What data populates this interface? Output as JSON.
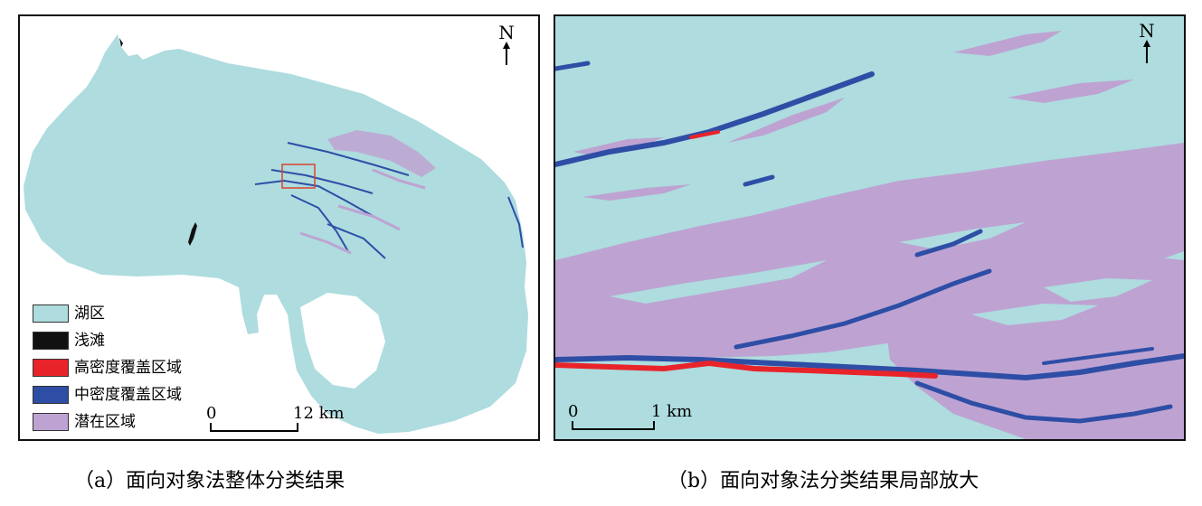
{
  "panel_a": {
    "north_label": "N",
    "legend": [
      {
        "label": "湖区",
        "color": "#aedcdf"
      },
      {
        "label": "浅滩",
        "color": "#111111"
      },
      {
        "label": "高密度覆盖区域",
        "color": "#e8242a"
      },
      {
        "label": "中密度覆盖区域",
        "color": "#2e4ea6"
      },
      {
        "label": "潜在区域",
        "color": "#bea3d2"
      }
    ],
    "scale": {
      "start": "0",
      "end": "12 km"
    },
    "caption": "（a）面向对象法整体分类结果"
  },
  "panel_b": {
    "north_label": "N",
    "scale": {
      "start": "0",
      "end": "1 km"
    },
    "caption": "（b）面向对象法分类结果局部放大"
  },
  "colors": {
    "lake": "#aedcdf",
    "shoal": "#111111",
    "high_density": "#e8242a",
    "medium_density": "#2e4ea6",
    "potential": "#bea3d2",
    "zoom_box": "#d9442e"
  }
}
